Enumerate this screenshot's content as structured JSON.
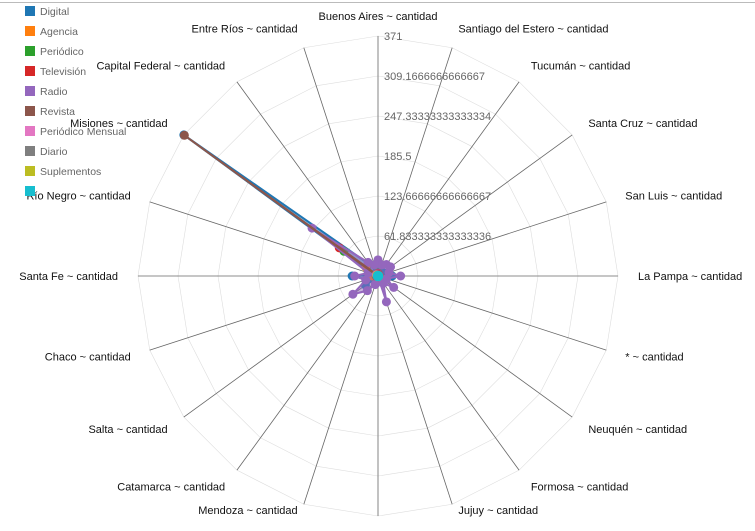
{
  "chart_data": {
    "type": "radar",
    "axes": [
      "Buenos Aires ~ cantidad",
      "Santiago del Estero ~ cantidad",
      "Tucumán ~ cantidad",
      "Santa Cruz ~ cantidad",
      "San Luis ~ cantidad",
      "La Pampa ~ cantidad",
      "* ~ cantidad",
      "Neuquén ~ cantidad",
      "Formosa ~ cantidad",
      "Jujuy ~ cantidad",
      "",
      "Mendoza ~ cantidad",
      "Catamarca ~ cantidad",
      "Salta ~ cantidad",
      "Chaco ~ cantidad",
      "Santa Fe ~ cantidad",
      "Río Negro ~ cantidad",
      "Misiones ~ cantidad",
      "Capital Federal ~ cantidad",
      "Entre Ríos ~ cantidad"
    ],
    "ticks": [
      "61.833333333333336",
      "123.66666666666667",
      "185.5",
      "247.33333333333334",
      "309.1666666666667",
      "371"
    ],
    "max": 371,
    "grid": true,
    "legend_position": "top-left",
    "series": [
      {
        "name": "Digital",
        "color": "#1f77b4",
        "fill": true,
        "values": [
          8,
          2,
          6,
          9,
          14,
          22,
          9,
          10,
          11,
          6,
          1,
          12,
          5,
          24,
          18,
          40,
          6,
          371,
          22,
          5
        ]
      },
      {
        "name": "Agencia",
        "color": "#ff7f0e",
        "fill": false,
        "values": [
          4,
          2,
          2,
          1,
          1,
          2,
          1,
          2,
          1,
          1,
          1,
          1,
          1,
          1,
          1,
          9,
          2,
          23,
          2,
          1
        ]
      },
      {
        "name": "Periódico",
        "color": "#2ca02c",
        "fill": false,
        "values": [
          5,
          2,
          2,
          2,
          2,
          2,
          2,
          1,
          1,
          1,
          1,
          2,
          1,
          2,
          2,
          3,
          1,
          65,
          2,
          1
        ]
      },
      {
        "name": "Televisión",
        "color": "#d62728",
        "fill": false,
        "values": [
          4,
          2,
          2,
          2,
          2,
          2,
          1,
          1,
          1,
          1,
          1,
          1,
          1,
          1,
          2,
          2,
          1,
          74,
          2,
          1
        ]
      },
      {
        "name": "Radio",
        "color": "#9467bd",
        "fill": true,
        "values": [
          25,
          18,
          22,
          24,
          18,
          35,
          14,
          30,
          14,
          42,
          1,
          14,
          28,
          48,
          20,
          36,
          16,
          126,
          26,
          18
        ]
      },
      {
        "name": "Revista",
        "color": "#8c564b",
        "fill": false,
        "values": [
          2,
          1,
          1,
          1,
          1,
          1,
          1,
          1,
          1,
          1,
          1,
          1,
          1,
          1,
          1,
          2,
          1,
          370,
          2,
          1
        ]
      },
      {
        "name": "Periódico Mensual",
        "color": "#e377c2",
        "fill": false,
        "values": [
          1,
          1,
          1,
          1,
          1,
          1,
          1,
          1,
          1,
          1,
          1,
          1,
          1,
          1,
          1,
          1,
          1,
          3,
          1,
          1
        ]
      },
      {
        "name": "Diario",
        "color": "#7f7f7f",
        "fill": false,
        "values": [
          1,
          1,
          1,
          1,
          1,
          1,
          1,
          1,
          1,
          1,
          1,
          1,
          1,
          1,
          1,
          1,
          1,
          2,
          1,
          1
        ]
      },
      {
        "name": "Suplementos",
        "color": "#bcbd22",
        "fill": false,
        "values": [
          1,
          1,
          1,
          1,
          1,
          1,
          1,
          1,
          1,
          1,
          1,
          1,
          1,
          1,
          1,
          1,
          1,
          2,
          1,
          1
        ]
      },
      {
        "name": "",
        "color": "#17becf",
        "fill": false,
        "values": [
          1,
          1,
          1,
          1,
          1,
          1,
          1,
          1,
          1,
          1,
          1,
          1,
          1,
          1,
          1,
          1,
          1,
          1,
          1,
          1
        ]
      }
    ]
  }
}
